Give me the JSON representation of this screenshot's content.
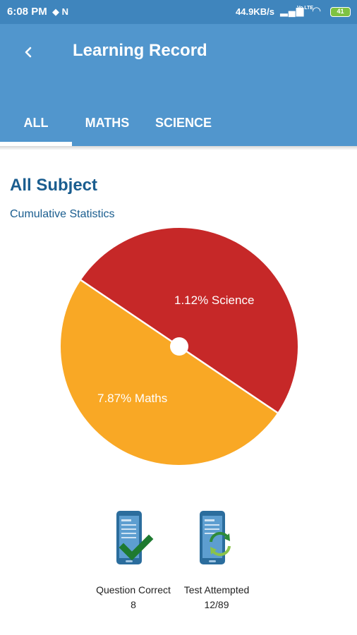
{
  "status_bar": {
    "time": "6:08 PM",
    "left_icons": "◆ N",
    "network_speed": "44.9KB/s",
    "lte_label": "Vo LTE",
    "battery": "41"
  },
  "app_bar": {
    "title": "Learning Record",
    "back_icon": "chevron-left-icon"
  },
  "tabs": [
    {
      "label": "ALL",
      "selected": true
    },
    {
      "label": "MATHS",
      "selected": false
    },
    {
      "label": "SCIENCE",
      "selected": false
    }
  ],
  "section": {
    "title": "All Subject",
    "subtitle": "Cumulative Statistics"
  },
  "chart_data": {
    "type": "pie",
    "slices": [
      {
        "label": "1.12% Science",
        "value": 50,
        "color": "#c62828"
      },
      {
        "label": "7.87% Maths",
        "value": 50,
        "color": "#f9a825"
      }
    ]
  },
  "stats": [
    {
      "label": "Question Correct",
      "value": "8",
      "icon": "phone-checkmark-icon"
    },
    {
      "label": "Test Attempted",
      "value": "12/89",
      "icon": "phone-refresh-icon"
    }
  ],
  "colors": {
    "status_bar": "#3f85bd",
    "app_bar": "#5196cd",
    "accent_text": "#1a5d8f"
  }
}
